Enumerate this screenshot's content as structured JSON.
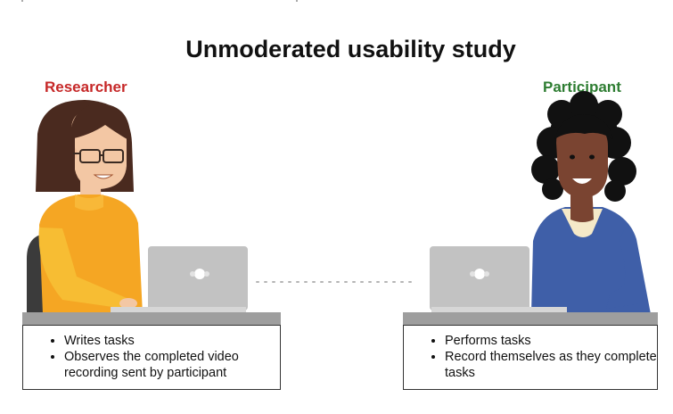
{
  "title": "Unmoderated usability study",
  "researcher": {
    "label": "Researcher",
    "tasks": [
      "Writes tasks",
      "Observes the completed video recording sent by participant"
    ]
  },
  "participant": {
    "label": "Participant",
    "tasks": [
      "Performs tasks",
      "Record themselves as they complete tasks"
    ]
  },
  "colors": {
    "researcher_label": "#c62828",
    "participant_label": "#2e7d32",
    "researcher_sweater": "#f5a623",
    "participant_sweater": "#3f5fa8",
    "laptop": "#c2c2c2",
    "desk": "#9e9e9e"
  },
  "icons": [
    "researcher-illustration",
    "participant-illustration",
    "laptop-icon",
    "camera-logo-icon",
    "connection-dots"
  ]
}
